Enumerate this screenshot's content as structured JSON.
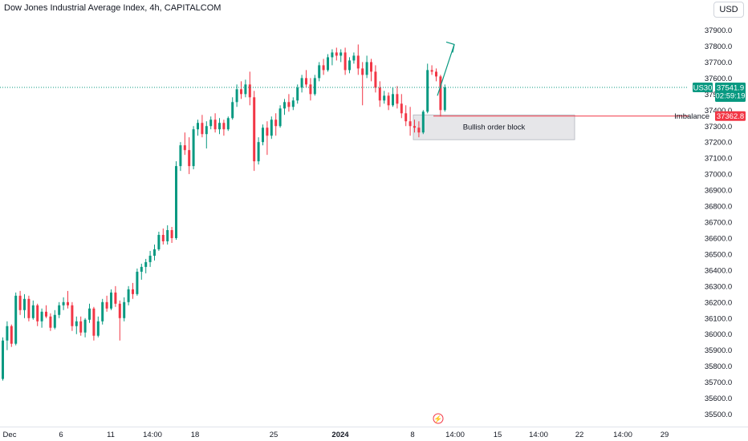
{
  "header": {
    "title": "Dow Jones Industrial Average Index, 4h, CAPITALCOM",
    "currency": "USD"
  },
  "colors": {
    "up": "#089981",
    "down": "#f23645",
    "price_line": "#089981",
    "imbalance_line": "#f23645",
    "order_block_fill": "#e6e6e9",
    "order_block_border": "#b2b5be",
    "arrow": "#089981",
    "event_marker": "#f23645"
  },
  "chart_data": {
    "type": "candlestick",
    "interval": "4h",
    "ylim": [
      35450,
      37950
    ],
    "y_ticks": [
      37900.0,
      37800.0,
      37700.0,
      37600.0,
      37500.0,
      37400.0,
      37300.0,
      37200.0,
      37100.0,
      37000.0,
      36900.0,
      36800.0,
      36700.0,
      36600.0,
      36500.0,
      36400.0,
      36300.0,
      36200.0,
      36100.0,
      36000.0,
      35900.0,
      35800.0,
      35700.0,
      35600.0,
      35500.0
    ],
    "y_tick_labels": [
      "37900.0",
      "37800.0",
      "37700.0",
      "37600.0",
      "37500.0",
      "37400.0",
      "37300.0",
      "37200.0",
      "37100.0",
      "37000.0",
      "36900.0",
      "36800.0",
      "36700.0",
      "36600.0",
      "36500.0",
      "36400.0",
      "36300.0",
      "36200.0",
      "36100.0",
      "36000.0",
      "35900.0",
      "35800.0",
      "35700.0",
      "35600.0",
      "35500.0"
    ],
    "x_tick_labels": [
      {
        "label": "Dec",
        "bold": false
      },
      {
        "label": "6",
        "bold": false
      },
      {
        "label": "11",
        "bold": false
      },
      {
        "label": "14:00",
        "bold": false
      },
      {
        "label": "18",
        "bold": false
      },
      {
        "label": "25",
        "bold": false
      },
      {
        "label": "2024",
        "bold": true
      },
      {
        "label": "8",
        "bold": false
      },
      {
        "label": "14:00",
        "bold": false
      },
      {
        "label": "15",
        "bold": false
      },
      {
        "label": "14:00",
        "bold": false
      },
      {
        "label": "22",
        "bold": false
      },
      {
        "label": "14:00",
        "bold": false
      },
      {
        "label": "29",
        "bold": false
      }
    ],
    "grid": false,
    "price_label": {
      "symbol": "US30",
      "value": "37541.9",
      "countdown": "02:59:19",
      "price": 37541.9
    },
    "imbalance": {
      "label": "Imbalance",
      "value": "37362.8",
      "price": 37362.8
    },
    "order_block": {
      "label": "Bullish order block",
      "top": 37370,
      "bottom": 37215
    },
    "candles": [
      [
        35720,
        35980,
        35710,
        35960
      ],
      [
        35960,
        36080,
        35900,
        36050
      ],
      [
        36050,
        36060,
        35920,
        35940
      ],
      [
        35940,
        36260,
        35930,
        36240
      ],
      [
        36240,
        36270,
        36120,
        36150
      ],
      [
        36150,
        36250,
        36100,
        36220
      ],
      [
        36220,
        36240,
        36080,
        36100
      ],
      [
        36100,
        36210,
        36090,
        36180
      ],
      [
        36180,
        36190,
        36050,
        36080
      ],
      [
        36080,
        36160,
        36040,
        36140
      ],
      [
        36140,
        36180,
        36100,
        36110
      ],
      [
        36110,
        36130,
        36020,
        36040
      ],
      [
        36040,
        36150,
        36030,
        36120
      ],
      [
        36120,
        36200,
        36100,
        36180
      ],
      [
        36180,
        36230,
        36150,
        36200
      ],
      [
        36200,
        36270,
        36160,
        36180
      ],
      [
        36180,
        36200,
        36020,
        36050
      ],
      [
        36050,
        36110,
        36000,
        36080
      ],
      [
        36080,
        36110,
        35990,
        36010
      ],
      [
        36010,
        36100,
        35980,
        36090
      ],
      [
        36090,
        36190,
        36070,
        36160
      ],
      [
        36160,
        36170,
        35960,
        35990
      ],
      [
        35990,
        36110,
        35980,
        36080
      ],
      [
        36080,
        36220,
        36060,
        36200
      ],
      [
        36200,
        36240,
        36140,
        36160
      ],
      [
        36160,
        36280,
        36150,
        36260
      ],
      [
        36260,
        36300,
        36170,
        36190
      ],
      [
        36190,
        36210,
        35960,
        36100
      ],
      [
        36100,
        36230,
        36080,
        36200
      ],
      [
        36200,
        36300,
        36180,
        36280
      ],
      [
        36280,
        36320,
        36220,
        36250
      ],
      [
        36250,
        36410,
        36240,
        36390
      ],
      [
        36390,
        36440,
        36340,
        36420
      ],
      [
        36420,
        36470,
        36380,
        36450
      ],
      [
        36450,
        36520,
        36420,
        36490
      ],
      [
        36490,
        36560,
        36460,
        36530
      ],
      [
        36530,
        36640,
        36520,
        36620
      ],
      [
        36620,
        36660,
        36560,
        36580
      ],
      [
        36580,
        36680,
        36560,
        36650
      ],
      [
        36650,
        36670,
        36570,
        36600
      ],
      [
        36600,
        37080,
        36590,
        37050
      ],
      [
        37050,
        37200,
        37020,
        37180
      ],
      [
        37180,
        37260,
        37120,
        37150
      ],
      [
        37150,
        37230,
        37000,
        37050
      ],
      [
        37050,
        37300,
        37030,
        37280
      ],
      [
        37280,
        37340,
        37240,
        37320
      ],
      [
        37320,
        37370,
        37230,
        37250
      ],
      [
        37250,
        37330,
        37160,
        37300
      ],
      [
        37300,
        37360,
        37280,
        37340
      ],
      [
        37340,
        37380,
        37260,
        37280
      ],
      [
        37280,
        37350,
        37250,
        37320
      ],
      [
        37320,
        37340,
        37240,
        37280
      ],
      [
        37280,
        37360,
        37270,
        37350
      ],
      [
        37350,
        37480,
        37340,
        37450
      ],
      [
        37450,
        37560,
        37420,
        37530
      ],
      [
        37530,
        37580,
        37470,
        37500
      ],
      [
        37500,
        37590,
        37480,
        37560
      ],
      [
        37560,
        37640,
        37430,
        37480
      ],
      [
        37480,
        37520,
        37020,
        37080
      ],
      [
        37080,
        37230,
        37060,
        37200
      ],
      [
        37200,
        37310,
        37180,
        37290
      ],
      [
        37290,
        37330,
        37120,
        37240
      ],
      [
        37240,
        37360,
        37220,
        37340
      ],
      [
        37340,
        37380,
        37240,
        37300
      ],
      [
        37300,
        37430,
        37290,
        37410
      ],
      [
        37410,
        37470,
        37370,
        37450
      ],
      [
        37450,
        37500,
        37390,
        37420
      ],
      [
        37420,
        37480,
        37400,
        37460
      ],
      [
        37460,
        37560,
        37440,
        37540
      ],
      [
        37540,
        37620,
        37510,
        37600
      ],
      [
        37600,
        37650,
        37540,
        37560
      ],
      [
        37560,
        37600,
        37460,
        37500
      ],
      [
        37500,
        37620,
        37490,
        37600
      ],
      [
        37600,
        37700,
        37580,
        37680
      ],
      [
        37680,
        37720,
        37620,
        37650
      ],
      [
        37650,
        37750,
        37640,
        37730
      ],
      [
        37730,
        37780,
        37680,
        37760
      ],
      [
        37760,
        37790,
        37710,
        37740
      ],
      [
        37740,
        37780,
        37700,
        37760
      ],
      [
        37760,
        37790,
        37620,
        37650
      ],
      [
        37650,
        37730,
        37630,
        37710
      ],
      [
        37710,
        37760,
        37690,
        37740
      ],
      [
        37740,
        37810,
        37620,
        37660
      ],
      [
        37660,
        37700,
        37430,
        37620
      ],
      [
        37620,
        37740,
        37600,
        37700
      ],
      [
        37700,
        37720,
        37580,
        37640
      ],
      [
        37640,
        37680,
        37510,
        37540
      ],
      [
        37540,
        37580,
        37420,
        37460
      ],
      [
        37460,
        37520,
        37440,
        37490
      ],
      [
        37490,
        37510,
        37400,
        37430
      ],
      [
        37430,
        37540,
        37420,
        37500
      ],
      [
        37500,
        37550,
        37410,
        37440
      ],
      [
        37440,
        37500,
        37350,
        37380
      ],
      [
        37380,
        37430,
        37300,
        37330
      ],
      [
        37330,
        37420,
        37240,
        37300
      ],
      [
        37300,
        37340,
        37260,
        37290
      ],
      [
        37290,
        37330,
        37230,
        37260
      ],
      [
        37260,
        37400,
        37250,
        37390
      ],
      [
        37390,
        37690,
        37380,
        37650
      ],
      [
        37650,
        37680,
        37620,
        37640
      ],
      [
        37640,
        37660,
        37580,
        37610
      ],
      [
        37610,
        37620,
        37360,
        37400
      ],
      [
        37400,
        37560,
        37390,
        37542
      ]
    ]
  }
}
